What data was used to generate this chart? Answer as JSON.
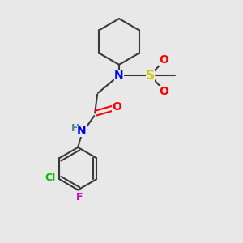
{
  "background_color": "#e8e8e8",
  "bond_color": "#3a3a3a",
  "nitrogen_color": "#0000ff",
  "oxygen_color": "#ff0000",
  "sulfur_color": "#cccc00",
  "chlorine_color": "#00bb00",
  "fluorine_color": "#cc00cc",
  "nh_h_color": "#4a8a8a",
  "figsize": [
    3.0,
    3.0
  ],
  "dpi": 100,
  "xlim": [
    0,
    10
  ],
  "ylim": [
    0,
    10
  ]
}
